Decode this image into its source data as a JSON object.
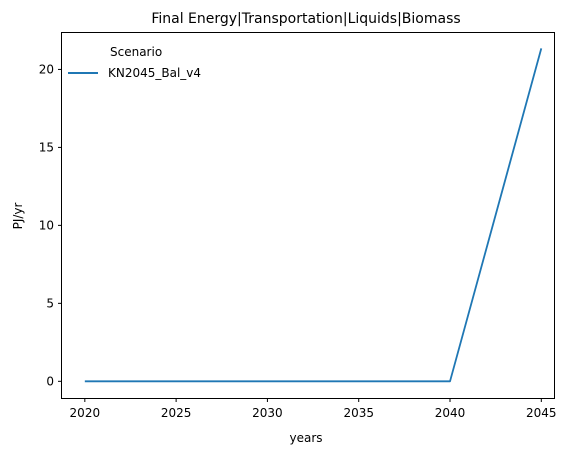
{
  "chart_data": {
    "type": "line",
    "title": "Final Energy|Transportation|Liquids|Biomass",
    "xlabel": "years",
    "ylabel": "PJ/yr",
    "x": [
      2020,
      2025,
      2030,
      2035,
      2040,
      2045
    ],
    "xticks": [
      2020,
      2025,
      2030,
      2035,
      2040,
      2045
    ],
    "yticks": [
      0,
      5,
      10,
      15,
      20
    ],
    "xlim": [
      2018.75,
      2045.75
    ],
    "ylim": [
      -1.07,
      22.4
    ],
    "grid": false,
    "legend": {
      "title": "Scenario",
      "position": "top-left"
    },
    "series": [
      {
        "name": "KN2045_Bal_v4",
        "color": "#1f77b4",
        "values": [
          0,
          0,
          0,
          0,
          0,
          21.35
        ]
      }
    ]
  }
}
